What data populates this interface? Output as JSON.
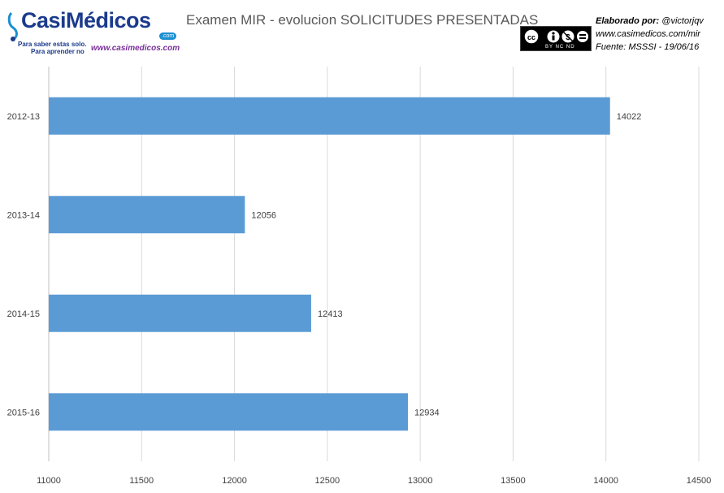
{
  "header": {
    "title": "Examen MIR - evolucion SOLICITUDES PRESENTADAS"
  },
  "logo": {
    "name": "CasiMédicos",
    "dotcom": ".com",
    "tagline_1": "Para saber estas solo.",
    "tagline_2": "Para aprender no",
    "url": "www.casimedicos.com"
  },
  "license": {
    "badge_icon": "creative-commons-by-nc-nd",
    "badge_labels": "BY  NC  ND"
  },
  "credits": {
    "author_label": "Elaborado por:",
    "author": "@victorjqv",
    "url": "www.casimedicos.com/mir",
    "source": "Fuente: MSSSI  - 19/06/16"
  },
  "colors": {
    "bar": "#5b9bd5",
    "grid": "#d9d9d9",
    "logo_blue": "#1b3a8c",
    "logo_purple": "#7a2e9a"
  },
  "chart_data": {
    "type": "bar",
    "orientation": "horizontal",
    "title": "Examen MIR - evolucion SOLICITUDES PRESENTADAS",
    "categories": [
      "2012-13",
      "2013-14",
      "2014-15",
      "2015-16"
    ],
    "values": [
      14022,
      12056,
      12413,
      12934
    ],
    "xlim": [
      11000,
      14500
    ],
    "x_ticks": [
      11000,
      11500,
      12000,
      12500,
      13000,
      13500,
      14000,
      14500
    ],
    "grid": true,
    "data_labels": true,
    "legend": "none"
  }
}
